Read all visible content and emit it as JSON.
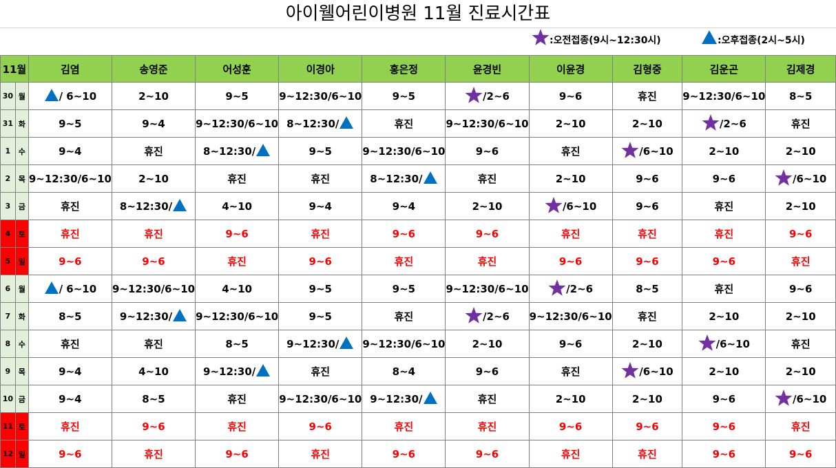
{
  "title": "아이웰어린이병원  11월  진료시간표",
  "legend": {
    "am_label": ":오전접종(9시~12:30시)",
    "pm_label": ":오후접종(2시~5시)",
    "am_icon": "star-icon",
    "pm_icon": "triangle-icon",
    "star_color": "#7030a0",
    "triangle_color": "#0070c0"
  },
  "header": {
    "month": "11월",
    "doctors": [
      "김염",
      "송영준",
      "어성훈",
      "이경아",
      "홍은정",
      "윤경빈",
      "이윤경",
      "김형중",
      "김운곤",
      "김제경"
    ]
  },
  "rows": [
    {
      "date": "30",
      "day": "월",
      "weekend": false,
      "cells": [
        {
          "icon": "triangle",
          "text": " / 6~10"
        },
        {
          "text": "2~10"
        },
        {
          "text": "9~5"
        },
        {
          "text": "9~12:30/6~10"
        },
        {
          "text": "9~5"
        },
        {
          "icon": "star",
          "text": "/2~6"
        },
        {
          "text": "9~6"
        },
        {
          "text": "휴진"
        },
        {
          "text": "9~12:30/6~10"
        },
        {
          "text": "8~5"
        }
      ]
    },
    {
      "date": "31",
      "day": "화",
      "weekend": false,
      "cells": [
        {
          "text": "9~5"
        },
        {
          "text": "9~4"
        },
        {
          "text": "9~12:30/6~10"
        },
        {
          "text": "8~12:30/",
          "icon_after": "triangle"
        },
        {
          "text": "휴진"
        },
        {
          "text": "9~12:30/6~10"
        },
        {
          "text": "2~10"
        },
        {
          "text": "2~10"
        },
        {
          "icon": "star",
          "text": "/2~6"
        },
        {
          "text": "휴진"
        }
      ]
    },
    {
      "date": "1",
      "day": "수",
      "weekend": false,
      "cells": [
        {
          "text": "9~4"
        },
        {
          "text": "휴진"
        },
        {
          "text": "8~12:30/",
          "icon_after": "triangle"
        },
        {
          "text": "9~5"
        },
        {
          "text": "9~12:30/6~10"
        },
        {
          "text": "9~6"
        },
        {
          "text": "휴진"
        },
        {
          "icon": "star",
          "text": "/6~10"
        },
        {
          "text": "2~10"
        },
        {
          "text": "2~10"
        }
      ]
    },
    {
      "date": "2",
      "day": "목",
      "weekend": false,
      "cells": [
        {
          "text": "9~12:30/6~10"
        },
        {
          "text": "2~10"
        },
        {
          "text": "휴진"
        },
        {
          "text": "휴진"
        },
        {
          "text": "8~12:30/",
          "icon_after": "triangle"
        },
        {
          "text": "휴진"
        },
        {
          "text": "2~10"
        },
        {
          "text": "9~6"
        },
        {
          "text": "9~6"
        },
        {
          "icon": "star",
          "text": "/6~10"
        }
      ]
    },
    {
      "date": "3",
      "day": "금",
      "weekend": false,
      "cells": [
        {
          "text": "휴진"
        },
        {
          "text": "8~12:30/",
          "icon_after": "triangle"
        },
        {
          "text": "4~10"
        },
        {
          "text": "9~4"
        },
        {
          "text": "9~4"
        },
        {
          "text": "2~10"
        },
        {
          "icon": "star",
          "text": "/6~10"
        },
        {
          "text": "9~6"
        },
        {
          "text": "휴진"
        },
        {
          "text": "2~10"
        }
      ]
    },
    {
      "date": "4",
      "day": "토",
      "weekend": true,
      "cells": [
        {
          "text": "휴진"
        },
        {
          "text": "휴진"
        },
        {
          "text": "9~6"
        },
        {
          "text": "휴진"
        },
        {
          "text": "9~6"
        },
        {
          "text": "9~6"
        },
        {
          "text": "휴진"
        },
        {
          "text": "휴진"
        },
        {
          "text": "휴진"
        },
        {
          "text": "9~6"
        }
      ]
    },
    {
      "date": "5",
      "day": "일",
      "weekend": true,
      "cells": [
        {
          "text": "9~6"
        },
        {
          "text": "9~6"
        },
        {
          "text": "휴진"
        },
        {
          "text": "9~6"
        },
        {
          "text": "휴진"
        },
        {
          "text": "휴진"
        },
        {
          "text": "9~6"
        },
        {
          "text": "9~6"
        },
        {
          "text": "9~6"
        },
        {
          "text": "휴진"
        }
      ]
    },
    {
      "date": "6",
      "day": "월",
      "weekend": false,
      "cells": [
        {
          "icon": "triangle",
          "text": " / 6~10"
        },
        {
          "text": "9~12:30/6~10"
        },
        {
          "text": "4~10"
        },
        {
          "text": "9~5"
        },
        {
          "text": "9~5"
        },
        {
          "text": "9~12:30/6~10"
        },
        {
          "icon": "star",
          "text": "/2~6"
        },
        {
          "text": "8~5"
        },
        {
          "text": "휴진"
        },
        {
          "text": "9~6"
        }
      ]
    },
    {
      "date": "7",
      "day": "화",
      "weekend": false,
      "cells": [
        {
          "text": "8~5"
        },
        {
          "text": "9~12:30/",
          "icon_after": "triangle"
        },
        {
          "text": "9~12:30/6~10"
        },
        {
          "text": "9~5"
        },
        {
          "text": "휴진"
        },
        {
          "icon": "star",
          "text": "/2~6"
        },
        {
          "text": "9~12:30/6~10"
        },
        {
          "text": "휴진"
        },
        {
          "text": "2~10"
        },
        {
          "text": "2~10"
        }
      ]
    },
    {
      "date": "8",
      "day": "수",
      "weekend": false,
      "cells": [
        {
          "text": "휴진"
        },
        {
          "text": "휴진"
        },
        {
          "text": "8~5"
        },
        {
          "text": "9~12:30/",
          "icon_after": "triangle"
        },
        {
          "text": "9~12:30/6~10"
        },
        {
          "text": "2~10"
        },
        {
          "text": "9~6"
        },
        {
          "text": "2~10"
        },
        {
          "icon": "star",
          "text": "/6~10"
        },
        {
          "text": "휴진"
        }
      ]
    },
    {
      "date": "9",
      "day": "목",
      "weekend": false,
      "cells": [
        {
          "text": "9~4"
        },
        {
          "text": "4~10"
        },
        {
          "text": "9~12:30/",
          "icon_after": "triangle"
        },
        {
          "text": "휴진"
        },
        {
          "text": "8~4"
        },
        {
          "text": "9~6"
        },
        {
          "text": "휴진"
        },
        {
          "icon": "star",
          "text": "/6~10"
        },
        {
          "text": "2~10"
        },
        {
          "text": "2~10"
        }
      ]
    },
    {
      "date": "10",
      "day": "금",
      "weekend": false,
      "cells": [
        {
          "text": "9~4"
        },
        {
          "text": "8~5"
        },
        {
          "text": "휴진"
        },
        {
          "text": "9~12:30/6~10"
        },
        {
          "text": "9~12:30/",
          "icon_after": "triangle"
        },
        {
          "text": "휴진"
        },
        {
          "text": "2~10"
        },
        {
          "text": "2~10"
        },
        {
          "text": "9~6"
        },
        {
          "icon": "star",
          "text": "/6~10"
        }
      ]
    },
    {
      "date": "11",
      "day": "토",
      "weekend": true,
      "cells": [
        {
          "text": "휴진"
        },
        {
          "text": "9~6"
        },
        {
          "text": "휴진"
        },
        {
          "text": "9~6"
        },
        {
          "text": "휴진"
        },
        {
          "text": "휴진"
        },
        {
          "text": "9~6"
        },
        {
          "text": "9~6"
        },
        {
          "text": "9~6"
        },
        {
          "text": "휴진"
        }
      ]
    },
    {
      "date": "12",
      "day": "일",
      "weekend": true,
      "cells": [
        {
          "text": "9~6"
        },
        {
          "text": "휴진"
        },
        {
          "text": "9~6"
        },
        {
          "text": "휴진"
        },
        {
          "text": "9~6"
        },
        {
          "text": "9~6"
        },
        {
          "text": "휴진"
        },
        {
          "text": "휴진"
        },
        {
          "text": "9~6"
        },
        {
          "text": "9~6"
        }
      ]
    }
  ]
}
